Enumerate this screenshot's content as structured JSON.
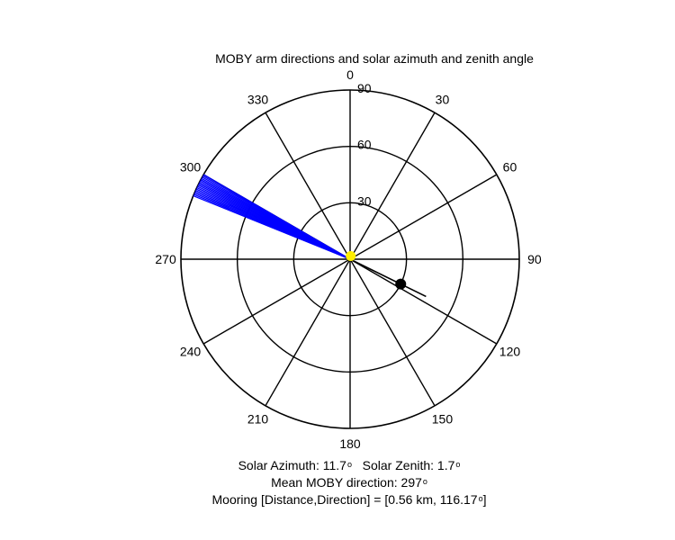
{
  "chart_data": {
    "type": "scatter",
    "projection": "polar",
    "title": "MOBY arm directions and solar azimuth and zenith angle",
    "angular_axis": {
      "zero_location": "top",
      "direction": "clockwise",
      "tick_labels": [
        "0",
        "30",
        "60",
        "90",
        "120",
        "150",
        "180",
        "210",
        "240",
        "270",
        "300",
        "330"
      ]
    },
    "radial_axis": {
      "range": [
        0,
        90
      ],
      "tick_labels": [
        "30",
        "60",
        "90"
      ],
      "label_angle_deg": 0
    },
    "grid": true,
    "series": [
      {
        "kind": "arm-direction-lines",
        "color": "#0000ff",
        "azimuths_deg": [
          292,
          292.5,
          293,
          293.5,
          294,
          294.5,
          295,
          295.5,
          296,
          296.5,
          297,
          297.5,
          298,
          298.5,
          299,
          299.5,
          300
        ],
        "radius": 90
      },
      {
        "kind": "solar-position",
        "color": "#ffee00",
        "azimuth_deg": 11.7,
        "zenith_deg": 1.7
      },
      {
        "kind": "mooring-position",
        "color": "#000000",
        "direction_deg": 116.17,
        "radius": 30,
        "track_to_radius": 45
      }
    ]
  },
  "footer": {
    "azimuth_label": "Solar Azimuth: 11.7",
    "zenith_label": "Solar Zenith: 1.7",
    "mean_label": "Mean MOBY direction: 297",
    "mooring_label_pre": "Mooring [Distance,Direction] = [0.56 km, 116.17",
    "mooring_label_post": "]",
    "degree_symbol": "o"
  }
}
